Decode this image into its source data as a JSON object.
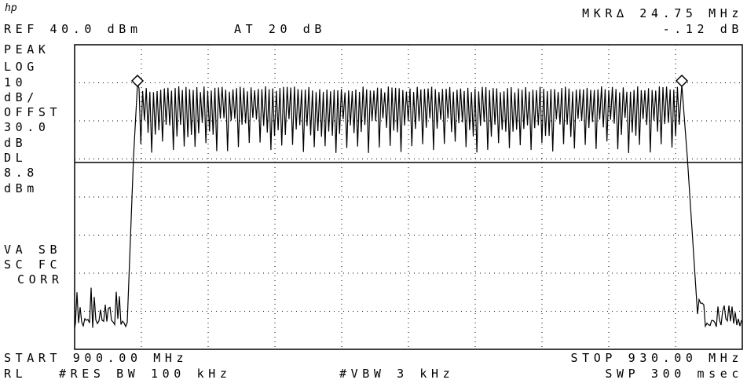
{
  "header": {
    "ref": "REF 40.0 dBm",
    "attenuation": "AT 20 dB",
    "marker": "MKR∆ 24.75 MHz",
    "marker_value": "-.12 dB"
  },
  "left_labels": [
    "PEAK",
    "LOG",
    "10",
    "dB/",
    "OFFST",
    "30.0",
    "dB",
    "DL",
    "8.8",
    "dBm",
    "VA SB",
    "SC FC",
    "CORR"
  ],
  "footer": {
    "start": "START 900.00 MHz",
    "stop": "STOP 930.00 MHz",
    "rl": "RL",
    "rbw": "#RES BW 100 kHz",
    "vbw": "#VBW 3 kHz",
    "sweep": "SWP 300 msec"
  }
}
